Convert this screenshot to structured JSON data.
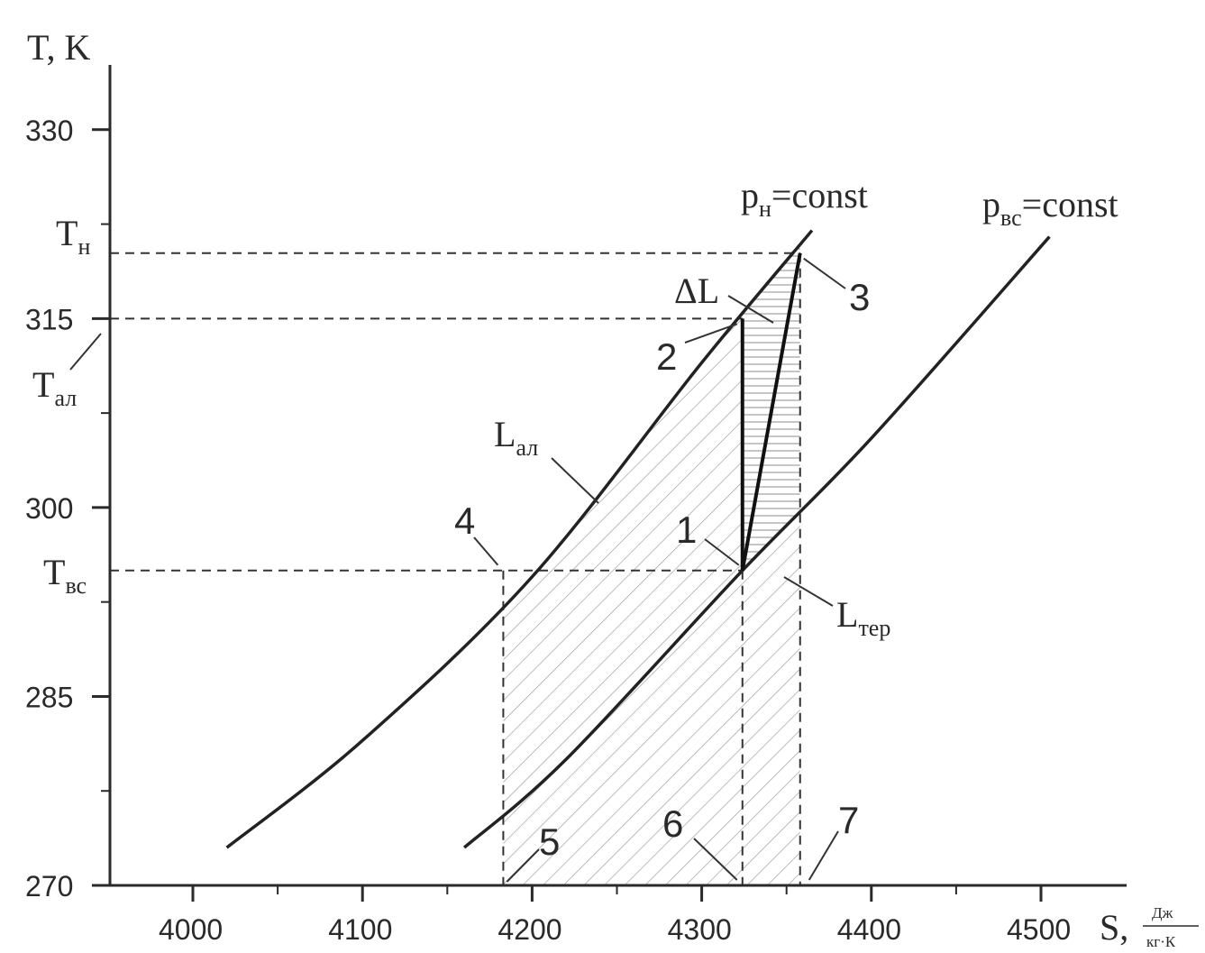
{
  "chart_data": {
    "type": "line",
    "title": "",
    "xlabel": "S,",
    "xlabel_unit_num": "Дж",
    "xlabel_unit_den": "кг·К",
    "ylabel": "T, K",
    "xlim": [
      3950,
      4550
    ],
    "ylim": [
      270,
      337
    ],
    "xticks": [
      4000,
      4100,
      4200,
      4300,
      4400,
      4500
    ],
    "yticks": [
      270,
      285,
      300,
      315,
      330
    ],
    "special_y_labels": [
      {
        "text": "T",
        "sub": "н",
        "y": 320.2
      },
      {
        "text": "T",
        "sub": "ал",
        "y": 315
      },
      {
        "text": "T",
        "sub": "вс",
        "y": 295
      }
    ],
    "series": [
      {
        "name": "pн=const",
        "label_main": "p",
        "label_sub": "н",
        "label_rest": "=const",
        "x": [
          4020,
          4100,
          4200,
          4300,
          4365
        ],
        "y": [
          273,
          281.5,
          294.5,
          311.5,
          322
        ]
      },
      {
        "name": "pвс=const",
        "label_main": "p",
        "label_sub": "вс",
        "label_rest": "=const",
        "x": [
          4160,
          4220,
          4324,
          4400,
          4505
        ],
        "y": [
          273,
          280,
          295,
          305.5,
          321.5
        ]
      }
    ],
    "process_lines": [
      {
        "x": [
          4324,
          4324
        ],
        "y": [
          295,
          315
        ]
      },
      {
        "x": [
          4324,
          4358
        ],
        "y": [
          295,
          320.2
        ]
      }
    ],
    "points": [
      {
        "label": "1",
        "x": 4324,
        "y": 295
      },
      {
        "label": "2",
        "x": 4324,
        "y": 315
      },
      {
        "label": "3",
        "x": 4358,
        "y": 320.2
      },
      {
        "label": "4",
        "x": 4183,
        "y": 295
      },
      {
        "label": "5",
        "x": 4183,
        "y": 270
      },
      {
        "label": "6",
        "x": 4324,
        "y": 270
      },
      {
        "label": "7",
        "x": 4358,
        "y": 270
      }
    ],
    "areas": [
      {
        "label_main": "L",
        "label_sub": "ал"
      },
      {
        "label_main": "L",
        "label_sub": "тер"
      },
      {
        "label_main": "ΔL",
        "label_sub": ""
      }
    ]
  }
}
